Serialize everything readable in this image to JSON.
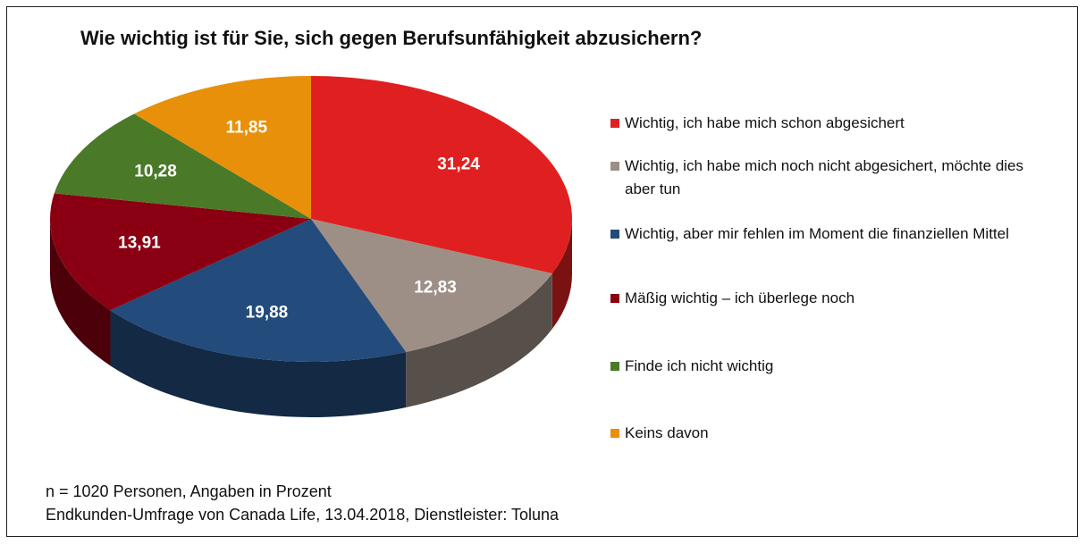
{
  "chart_data": {
    "type": "pie",
    "title": "Wie wichtig ist für Sie, sich gegen Berufsunfähigkeit abzusichern?",
    "categories": [
      "Wichtig, ich habe mich schon abgesichert",
      "Wichtig, ich habe mich noch nicht abgesichert, möchte dies aber tun",
      "Wichtig, aber mir fehlen im Moment die finanziellen Mittel",
      "Mäßig wichtig – ich überlege noch",
      "Finde ich nicht wichtig",
      "Keins davon"
    ],
    "values": [
      31.24,
      12.83,
      19.88,
      13.91,
      10.28,
      11.85
    ],
    "value_labels": [
      "31,24",
      "12,83",
      "19,88",
      "13,91",
      "10,28",
      "11,85"
    ],
    "colors": [
      "#e02020",
      "#9e8f86",
      "#234b7c",
      "#8a0012",
      "#4a7a28",
      "#e8900a"
    ],
    "annotations": [
      "n = 1020 Personen, Angaben in Prozent",
      "Endkunden-Umfrage von Canada Life, 13.04.2018, Dienstleister: Toluna"
    ]
  }
}
